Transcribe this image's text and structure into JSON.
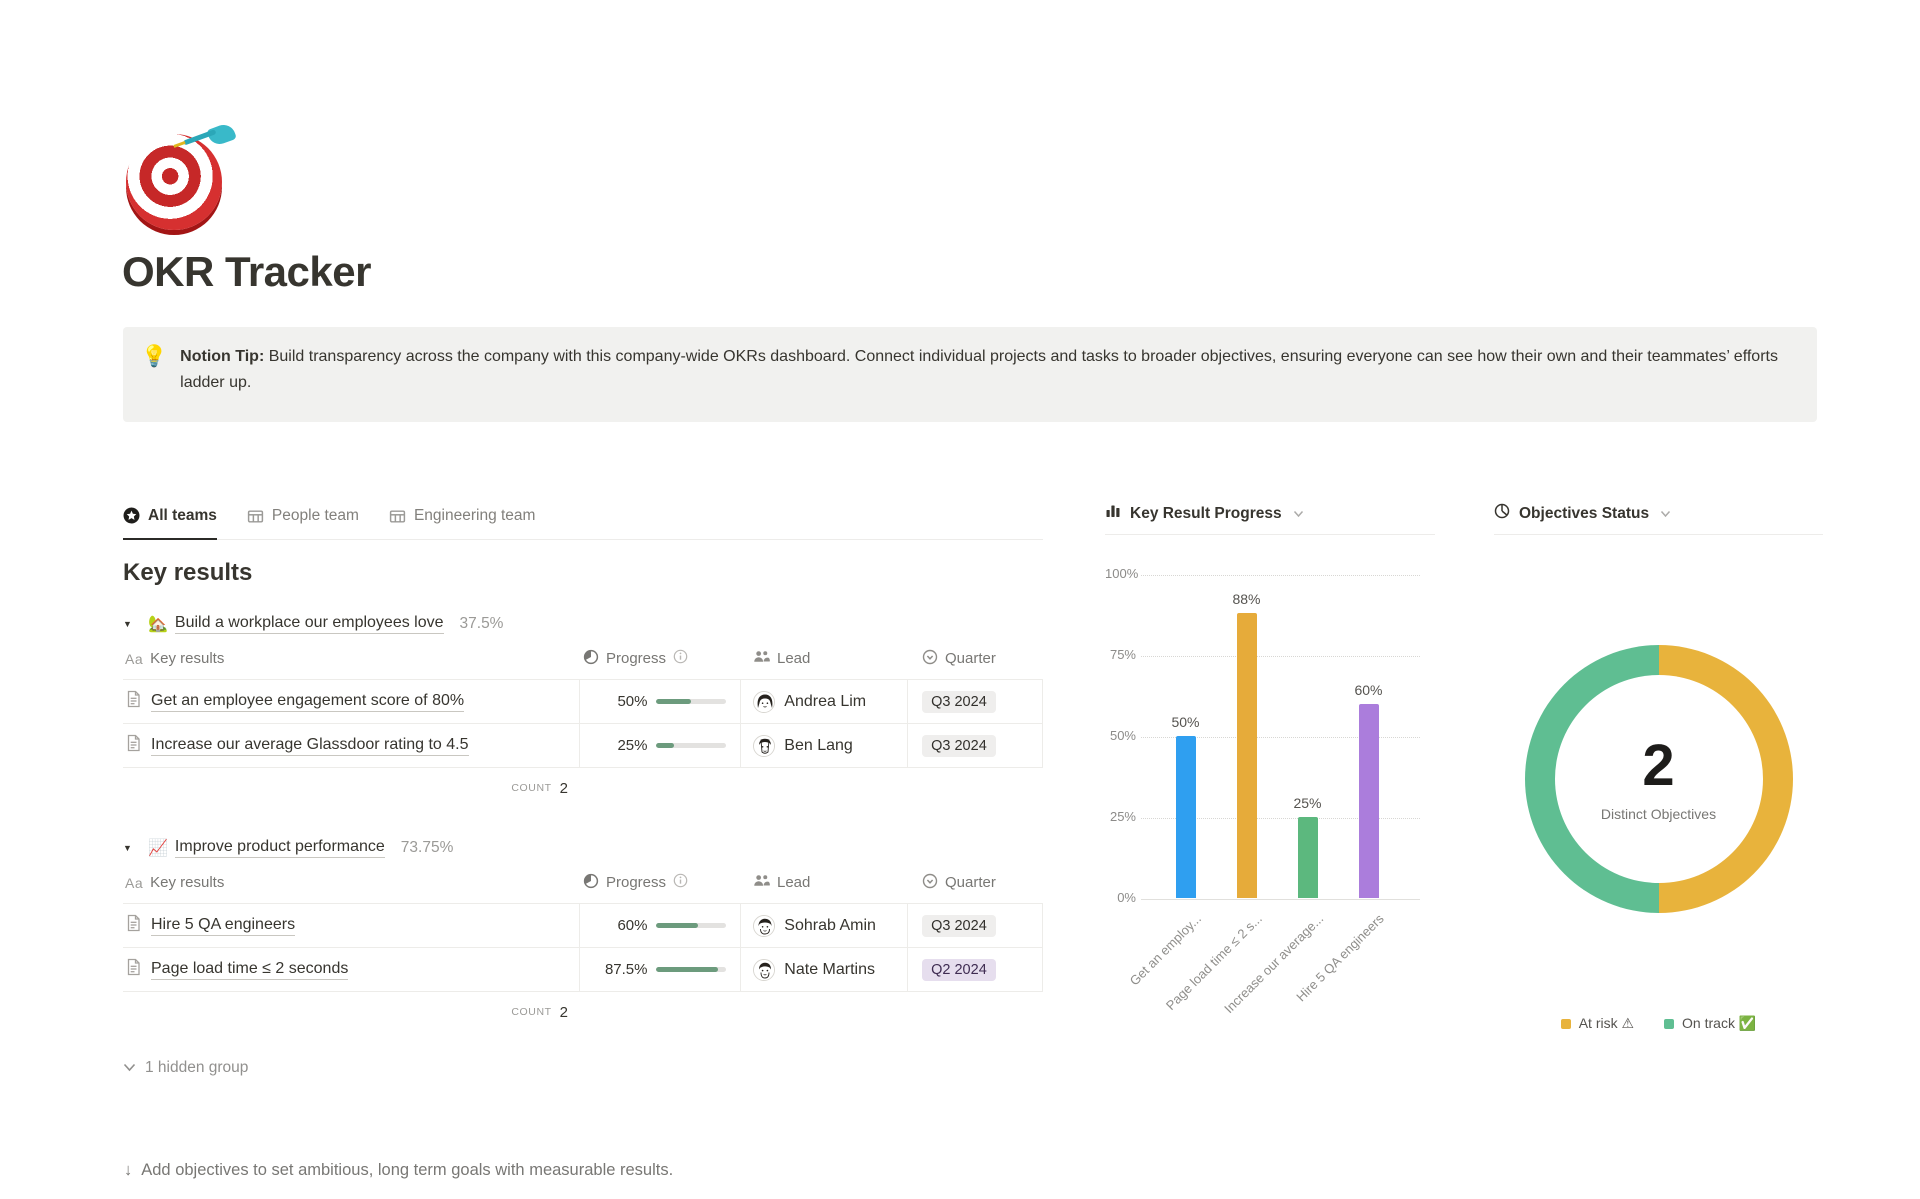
{
  "page": {
    "icon": "🎯",
    "title": "OKR Tracker"
  },
  "callout": {
    "icon": "💡",
    "bold": "Notion Tip:",
    "text": " Build transparency across the company with this company-wide OKRs dashboard. Connect individual projects and tasks to broader objectives, ensuring everyone can see how their own and their teammates’ efforts ladder up."
  },
  "tabs": [
    {
      "label": "All teams",
      "active": true
    },
    {
      "label": "People team",
      "active": false
    },
    {
      "label": "Engineering team",
      "active": false
    }
  ],
  "section_title": "Key results",
  "icons": {
    "group_toggle": "▼"
  },
  "table": {
    "header": {
      "name_icon": "Aa",
      "name": "Key results",
      "progress": "Progress",
      "lead": "Lead",
      "quarter": "Quarter"
    },
    "count_label": "COUNT",
    "groups": [
      {
        "emoji": "🏡",
        "title": "Build a workplace our employees love",
        "percent": "37.5%",
        "count": "2",
        "rows": [
          {
            "name": "Get an employee engagement score of 80%",
            "progress_label": "50%",
            "progress_value": 50,
            "lead": "Andrea Lim",
            "quarter": "Q3 2024",
            "quarter_bg": "#EFEEED",
            "quarter_fg": "#32302C"
          },
          {
            "name": "Increase our average Glassdoor rating to 4.5",
            "progress_label": "25%",
            "progress_value": 25,
            "lead": "Ben Lang",
            "quarter": "Q3 2024",
            "quarter_bg": "#EFEEED",
            "quarter_fg": "#32302C"
          }
        ]
      },
      {
        "emoji": "📈",
        "title": "Improve product performance",
        "percent": "73.75%",
        "count": "2",
        "rows": [
          {
            "name": "Hire 5 QA engineers",
            "progress_label": "60%",
            "progress_value": 60,
            "lead": "Sohrab Amin",
            "quarter": "Q3 2024",
            "quarter_bg": "#EFEEED",
            "quarter_fg": "#32302C"
          },
          {
            "name": "Page load time ≤ 2 seconds",
            "progress_label": "87.5%",
            "progress_value": 87.5,
            "lead": "Nate Martins",
            "quarter": "Q2 2024",
            "quarter_bg": "#E6DEEE",
            "quarter_fg": "#3F2C52"
          }
        ]
      }
    ],
    "hidden_group_label": "1 hidden group"
  },
  "footer": {
    "arrow": "↓",
    "text": "Add objectives to set ambitious, long term goals with measurable results."
  },
  "chart_data": [
    {
      "type": "bar",
      "title": "Key Result Progress",
      "categories": [
        "Get an employ...",
        "Page load time ≤ 2 s...",
        "Increase our average...",
        "Hire 5 QA engineers"
      ],
      "values": [
        50,
        88,
        25,
        60
      ],
      "value_labels": [
        "50%",
        "88%",
        "25%",
        "60%"
      ],
      "bar_colors": [
        "#2F9FF0",
        "#E6AB3A",
        "#5CB87E",
        "#AB7DDC"
      ],
      "yticks": [
        "100%",
        "75%",
        "50%",
        "25%",
        "0%"
      ],
      "ylim": [
        0,
        100
      ],
      "xlabel": "",
      "ylabel": "",
      "grid": "dotted-horizontal",
      "legend_position": "none"
    },
    {
      "type": "pie",
      "title": "Objectives Status",
      "center_value": "2",
      "center_label": "Distinct Objectives",
      "slices": [
        {
          "label": "At risk ⚠",
          "value": 1,
          "color": "#E8B33C"
        },
        {
          "label": "On track ✅",
          "value": 1,
          "color": "#5FBE92"
        }
      ],
      "legend_position": "bottom"
    }
  ]
}
